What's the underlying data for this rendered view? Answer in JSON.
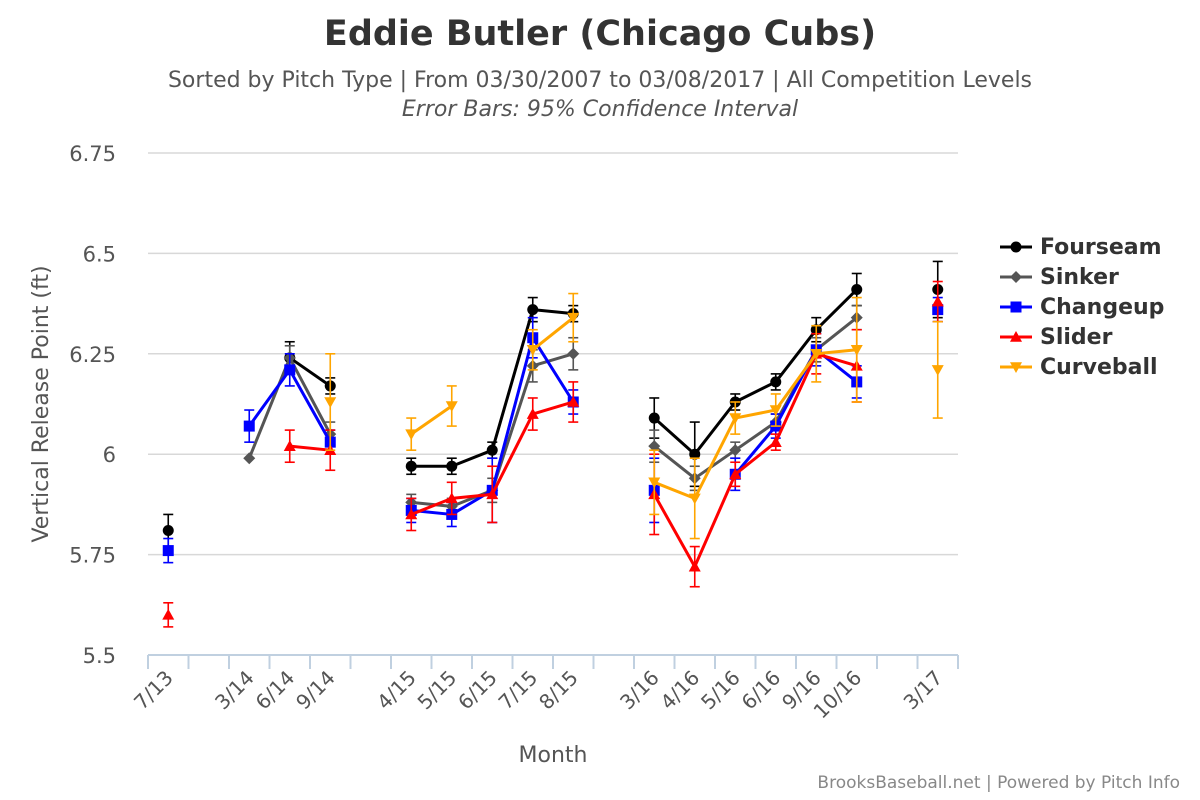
{
  "title": "Eddie Butler (Chicago Cubs)",
  "subtitle": "Sorted by Pitch Type | From 03/30/2007 to 03/08/2017 | All Competition Levels",
  "subtitle2": "Error Bars: 95% Confidence Interval",
  "credit": "BrooksBaseball.net | Powered by Pitch Info",
  "chart_data": {
    "type": "line",
    "xlabel": "Month",
    "ylabel": "Vertical Release Point (ft)",
    "ylim": [
      5.5,
      6.75
    ],
    "yticks": [
      "5.5",
      "5.75",
      "6",
      "6.25",
      "6.5",
      "6.75"
    ],
    "categories": [
      "7/13",
      "",
      "3/14",
      "6/14",
      "9/14",
      "",
      "4/15",
      "5/15",
      "6/15",
      "7/15",
      "8/15",
      "",
      "3/16",
      "4/16",
      "5/16",
      "6/16",
      "9/16",
      "10/16",
      "",
      "3/17"
    ],
    "grid": "horizontal",
    "legend_position": "right",
    "series": [
      {
        "name": "Fourseam",
        "color": "#000000",
        "marker": "circle",
        "values": [
          5.81,
          null,
          null,
          6.24,
          6.17,
          null,
          5.97,
          5.97,
          6.01,
          6.36,
          6.35,
          null,
          6.09,
          6.0,
          6.13,
          6.18,
          6.31,
          6.41,
          null,
          6.41
        ],
        "err": [
          0.04,
          null,
          null,
          0.04,
          0.02,
          null,
          0.02,
          0.02,
          0.02,
          0.03,
          0.02,
          null,
          0.05,
          0.08,
          0.02,
          0.02,
          0.03,
          0.04,
          null,
          0.07
        ]
      },
      {
        "name": "Sinker",
        "color": "#555555",
        "marker": "diamond",
        "values": [
          null,
          null,
          5.99,
          6.24,
          6.05,
          null,
          5.88,
          5.87,
          5.91,
          6.22,
          6.25,
          null,
          6.02,
          5.94,
          6.01,
          6.08,
          6.26,
          6.34,
          null,
          null
        ],
        "err": [
          null,
          null,
          null,
          0.03,
          0.03,
          null,
          0.02,
          0.02,
          0.03,
          0.04,
          0.04,
          null,
          0.04,
          0.03,
          0.02,
          0.02,
          0.03,
          0.03,
          null,
          null
        ]
      },
      {
        "name": "Changeup",
        "color": "#0000ff",
        "marker": "square",
        "values": [
          5.76,
          null,
          6.07,
          6.21,
          6.03,
          null,
          5.86,
          5.85,
          5.91,
          6.29,
          6.13,
          null,
          5.91,
          null,
          5.95,
          6.07,
          6.26,
          6.18,
          null,
          6.36
        ],
        "err": [
          0.03,
          null,
          0.04,
          0.04,
          0.03,
          null,
          0.03,
          0.03,
          0.08,
          0.05,
          0.03,
          null,
          0.08,
          null,
          0.04,
          0.03,
          0.04,
          0.04,
          null,
          0.03
        ]
      },
      {
        "name": "Slider",
        "color": "#ff0000",
        "marker": "triangle",
        "values": [
          5.6,
          null,
          null,
          6.02,
          6.01,
          null,
          5.85,
          5.89,
          5.9,
          6.1,
          6.13,
          null,
          5.9,
          5.72,
          5.95,
          6.03,
          6.25,
          6.22,
          null,
          6.38
        ],
        "err": [
          0.03,
          null,
          null,
          0.04,
          0.05,
          null,
          0.04,
          0.04,
          0.07,
          0.04,
          0.05,
          null,
          0.1,
          0.05,
          0.03,
          0.02,
          0.05,
          0.09,
          null,
          0.05
        ]
      },
      {
        "name": "Curveball",
        "color": "#ffa500",
        "marker": "triangle-down",
        "values": [
          null,
          null,
          null,
          null,
          6.13,
          null,
          6.05,
          6.12,
          null,
          6.26,
          6.34,
          null,
          5.93,
          5.89,
          6.09,
          6.11,
          6.25,
          6.26,
          null,
          6.21
        ],
        "err": [
          null,
          null,
          null,
          null,
          0.12,
          null,
          0.04,
          0.05,
          null,
          0.05,
          0.06,
          null,
          0.08,
          0.1,
          0.04,
          0.04,
          0.07,
          0.13,
          null,
          0.12
        ]
      }
    ]
  }
}
